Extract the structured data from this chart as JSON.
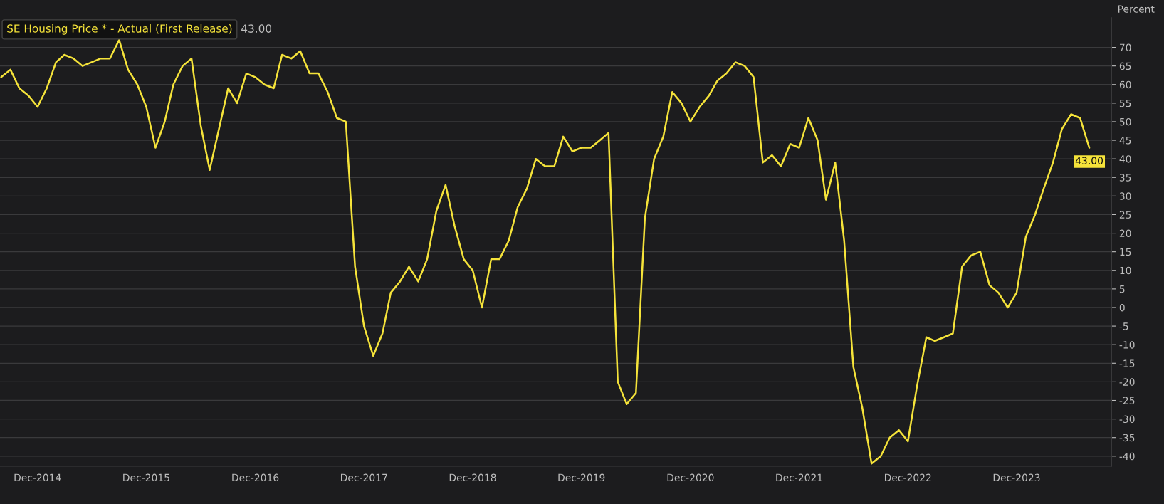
{
  "chart_data": {
    "type": "line",
    "ylabel": "Percent",
    "x": [
      "2014-08",
      "2014-09",
      "2014-10",
      "2014-11",
      "2014-12",
      "2015-01",
      "2015-02",
      "2015-03",
      "2015-04",
      "2015-05",
      "2015-06",
      "2015-07",
      "2015-08",
      "2015-09",
      "2015-10",
      "2015-11",
      "2015-12",
      "2016-01",
      "2016-02",
      "2016-03",
      "2016-04",
      "2016-05",
      "2016-06",
      "2016-07",
      "2016-08",
      "2016-09",
      "2016-10",
      "2016-11",
      "2016-12",
      "2017-01",
      "2017-02",
      "2017-03",
      "2017-04",
      "2017-05",
      "2017-06",
      "2017-07",
      "2017-08",
      "2017-09",
      "2017-10",
      "2017-11",
      "2017-12",
      "2018-01",
      "2018-02",
      "2018-03",
      "2018-04",
      "2018-05",
      "2018-06",
      "2018-07",
      "2018-08",
      "2018-09",
      "2018-10",
      "2018-11",
      "2018-12",
      "2019-01",
      "2019-02",
      "2019-03",
      "2019-04",
      "2019-05",
      "2019-06",
      "2019-07",
      "2019-08",
      "2019-09",
      "2019-10",
      "2019-11",
      "2019-12",
      "2020-01",
      "2020-02",
      "2020-03",
      "2020-04",
      "2020-05",
      "2020-06",
      "2020-07",
      "2020-08",
      "2020-09",
      "2020-10",
      "2020-11",
      "2020-12",
      "2021-01",
      "2021-02",
      "2021-03",
      "2021-04",
      "2021-05",
      "2021-06",
      "2021-07",
      "2021-08",
      "2021-09",
      "2021-10",
      "2021-11",
      "2021-12",
      "2022-01",
      "2022-02",
      "2022-03",
      "2022-04",
      "2022-05",
      "2022-06",
      "2022-07",
      "2022-08",
      "2022-09",
      "2022-10",
      "2022-11",
      "2022-12",
      "2023-01",
      "2023-02",
      "2023-03",
      "2023-04",
      "2023-05",
      "2023-06",
      "2023-07",
      "2023-08",
      "2023-09",
      "2023-10",
      "2023-11",
      "2023-12",
      "2024-01",
      "2024-02",
      "2024-03",
      "2024-04",
      "2024-05",
      "2024-06",
      "2024-07",
      "2024-08"
    ],
    "series": [
      {
        "name": "SE Housing Price * - Actual (First Release)",
        "color": "#f5e33a",
        "values": [
          62,
          64,
          59,
          57,
          54,
          59,
          66,
          68,
          67,
          65,
          66,
          67,
          67,
          72,
          64,
          60,
          54,
          43,
          50,
          60,
          65,
          67,
          49,
          37,
          48,
          59,
          55,
          63,
          62,
          60,
          59,
          68,
          67,
          69,
          63,
          63,
          58,
          51,
          50,
          11,
          -5,
          -13,
          -7,
          4,
          7,
          11,
          7,
          13,
          26,
          33,
          22,
          13,
          10,
          0,
          13,
          13,
          18,
          27,
          32,
          40,
          38,
          38,
          46,
          42,
          43,
          43,
          45,
          47,
          -20,
          -26,
          -23,
          24,
          40,
          46,
          58,
          55,
          50,
          54,
          57,
          61,
          63,
          66,
          65,
          62,
          39,
          41,
          38,
          44,
          43,
          51,
          45,
          29,
          39,
          18,
          -16,
          -27,
          -42,
          -40,
          -35,
          -33,
          -36,
          -21,
          -8,
          -9,
          -8,
          -7,
          11,
          14,
          15,
          6,
          4,
          0,
          4,
          19,
          25,
          32,
          39,
          48,
          52,
          51,
          43
        ]
      }
    ],
    "annotations": [
      "43.00",
      {
        "text": "43.00",
        "x": "2024-08",
        "y": 43
      }
    ],
    "xlim": [
      "2014-07-28",
      "2024-10-15"
    ],
    "xticks": [
      {
        "value": "2014-12",
        "label": "Dec-2014"
      },
      {
        "value": "2015-12",
        "label": "Dec-2015"
      },
      {
        "value": "2016-12",
        "label": "Dec-2016"
      },
      {
        "value": "2017-12",
        "label": "Dec-2017"
      },
      {
        "value": "2018-12",
        "label": "Dec-2018"
      },
      {
        "value": "2019-12",
        "label": "Dec-2019"
      },
      {
        "value": "2020-12",
        "label": "Dec-2020"
      },
      {
        "value": "2021-12",
        "label": "Dec-2021"
      },
      {
        "value": "2022-12",
        "label": "Dec-2022"
      },
      {
        "value": "2023-12",
        "label": "Dec-2023"
      }
    ],
    "ylim": [
      -42.7,
      78
    ],
    "yticks": [
      -40,
      -35,
      -30,
      -25,
      -20,
      -15,
      -10,
      -5,
      0,
      5,
      10,
      15,
      20,
      25,
      30,
      35,
      40,
      45,
      50,
      55,
      60,
      65,
      70
    ],
    "grid": "y",
    "legend": "top left",
    "line_style": "solid",
    "marker": "none"
  }
}
